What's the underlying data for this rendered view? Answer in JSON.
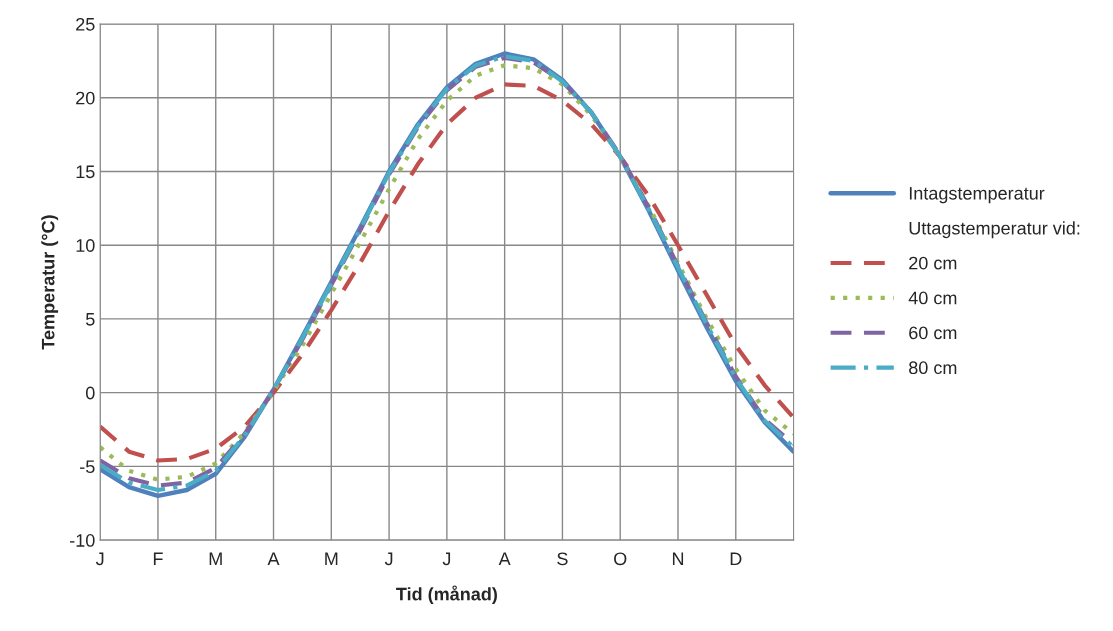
{
  "chart_data": {
    "type": "line",
    "xlabel": "Tid (månad)",
    "ylabel": "Temperatur (°C)",
    "legend_title": "Uttagstemperatur vid:",
    "categories": [
      "J",
      null,
      "F",
      null,
      "M",
      null,
      "A",
      null,
      "M",
      null,
      "J",
      null,
      "J",
      null,
      "A",
      null,
      "S",
      null,
      "O",
      null,
      "N",
      null,
      "D",
      null,
      null
    ],
    "series": [
      {
        "name": "Intagstemperatur",
        "color": "#4f81bd",
        "line_style": "solid",
        "values": [
          -5.2,
          -6.4,
          -7.0,
          -6.6,
          -5.5,
          -3.0,
          0.2,
          3.8,
          7.5,
          11.2,
          15.0,
          18.2,
          20.7,
          22.3,
          23.0,
          22.6,
          21.2,
          19.0,
          16.0,
          12.3,
          8.3,
          4.4,
          0.8,
          -2.0,
          -4.0
        ]
      },
      {
        "name": "20 cm",
        "color": "#c0504d",
        "line_style": "dashed",
        "values": [
          -2.3,
          -4.0,
          -4.6,
          -4.5,
          -3.8,
          -2.3,
          0.0,
          2.6,
          5.6,
          8.8,
          12.3,
          15.5,
          18.2,
          20.0,
          20.9,
          20.8,
          19.8,
          18.2,
          16.0,
          13.3,
          10.0,
          6.6,
          3.2,
          0.5,
          -1.7
        ]
      },
      {
        "name": "40 cm",
        "color": "#9bbb59",
        "line_style": "dotted",
        "values": [
          -3.7,
          -5.3,
          -5.9,
          -5.7,
          -4.8,
          -2.7,
          0.1,
          3.2,
          6.7,
          10.2,
          13.8,
          17.2,
          19.8,
          21.5,
          22.2,
          22.0,
          20.9,
          18.8,
          16.0,
          12.6,
          8.8,
          5.0,
          1.6,
          -1.2,
          -2.8
        ]
      },
      {
        "name": "60 cm",
        "color": "#8064a2",
        "line_style": "dashed",
        "values": [
          -4.6,
          -5.8,
          -6.3,
          -6.1,
          -5.1,
          -2.8,
          0.2,
          3.6,
          7.3,
          11.0,
          14.8,
          18.0,
          20.5,
          22.1,
          22.7,
          22.4,
          21.1,
          19.0,
          16.1,
          12.5,
          8.6,
          4.7,
          1.1,
          -1.8,
          -3.5
        ]
      },
      {
        "name": "80 cm",
        "color": "#4bacc6",
        "line_style": "dashdot",
        "values": [
          -4.9,
          -6.1,
          -6.6,
          -6.3,
          -5.3,
          -2.9,
          0.2,
          3.7,
          7.4,
          11.1,
          14.9,
          18.1,
          20.6,
          22.2,
          22.8,
          22.5,
          21.1,
          19.0,
          16.0,
          12.4,
          8.5,
          4.6,
          1.0,
          -1.9,
          -3.7
        ]
      }
    ],
    "ylim": [
      -10,
      25
    ],
    "yticks": [
      -10,
      -5,
      0,
      5,
      10,
      15,
      20,
      25
    ],
    "grid": true,
    "legend": "right",
    "marker": "none"
  }
}
